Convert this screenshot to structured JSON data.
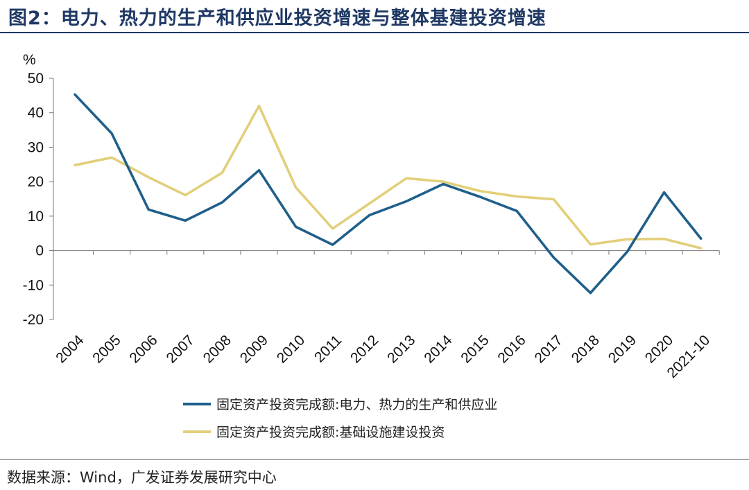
{
  "figure": {
    "title": "图2：电力、热力的生产和供应业投资增速与整体基建投资增速",
    "source": "数据来源：Wind，广发证券发展研究中心"
  },
  "chart_data": {
    "type": "line",
    "title": "",
    "xlabel": "",
    "ylabel": "%",
    "ylim": [
      -20,
      50
    ],
    "yticks": [
      "50",
      "40",
      "30",
      "20",
      "10",
      "0",
      "-10",
      "-20"
    ],
    "x": [
      "2004",
      "2005",
      "2006",
      "2007",
      "2008",
      "2009",
      "2010",
      "2011",
      "2012",
      "2013",
      "2014",
      "2015",
      "2016",
      "2017",
      "2018",
      "2019",
      "2020",
      "2021-10"
    ],
    "series": [
      {
        "name": "固定资产投资完成额:电力、热力的生产和供应业",
        "color": "#1f5f8b",
        "values": [
          45.3,
          34.0,
          11.9,
          8.7,
          14.0,
          23.3,
          6.9,
          1.7,
          10.3,
          14.3,
          19.3,
          15.6,
          11.5,
          -2.0,
          -12.3,
          -0.3,
          16.9,
          3.5
        ]
      },
      {
        "name": "固定资产投资完成额:基础设施建设投资",
        "color": "#e2cf7a",
        "values": [
          24.8,
          27.0,
          21.3,
          16.1,
          22.6,
          42.0,
          18.3,
          6.4,
          13.7,
          21.0,
          20.0,
          17.3,
          15.7,
          14.9,
          1.8,
          3.3,
          3.4,
          0.7
        ]
      }
    ],
    "legend_position": "bottom",
    "grid": false
  }
}
